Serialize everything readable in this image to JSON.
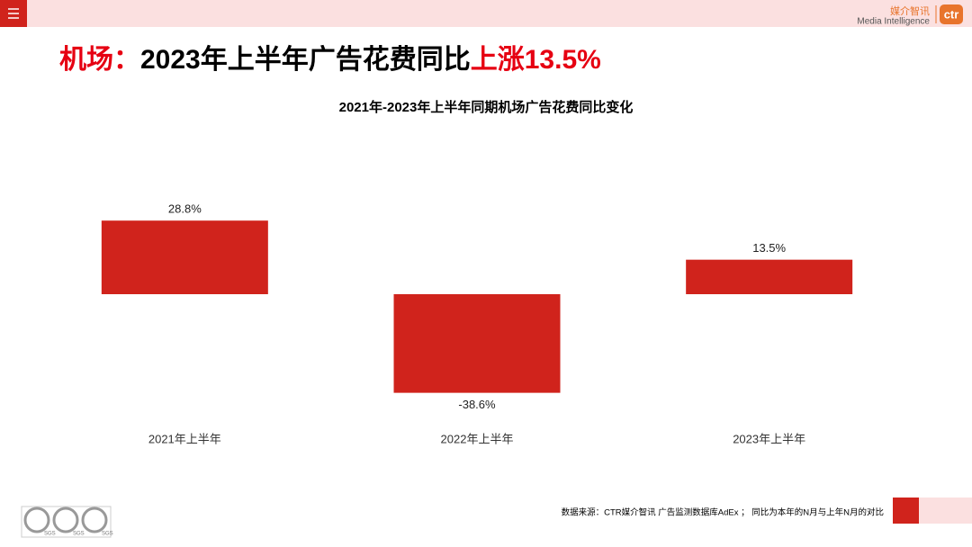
{
  "header": {
    "title_parts": [
      "机场：",
      "2023年上半年广告花费同比",
      "上涨13.5%"
    ]
  },
  "logo": {
    "cn": "媒介智讯",
    "en": "Media Intelligence",
    "brand": "ctr"
  },
  "chart_data": {
    "type": "bar",
    "title": "2021年-2023年上半年同期机场广告花费同比变化",
    "categories": [
      "2021年上半年",
      "2022年上半年",
      "2023年上半年"
    ],
    "values": [
      28.8,
      -38.6,
      13.5
    ],
    "value_labels": [
      "28.8%",
      "-38.6%",
      "13.5%"
    ],
    "color": "#d0231c"
  },
  "footer": {
    "source": "数据来源：CTR媒介智讯 广告监测数据库AdEx ； 同比为本年的N月与上年N月的对比",
    "badge": "SGS"
  }
}
